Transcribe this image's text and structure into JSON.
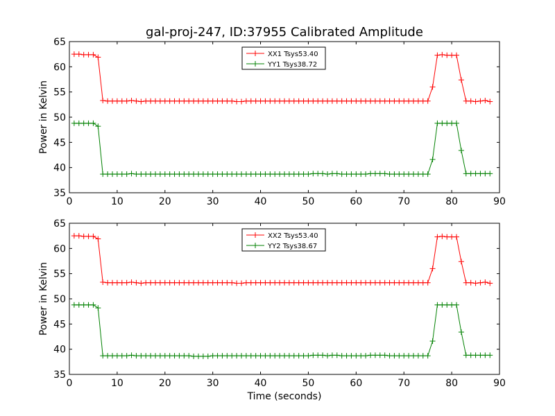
{
  "chart_data": [
    {
      "type": "line",
      "title": "gal-proj-247, ID:37955 Calibrated Amplitude",
      "xlabel": "",
      "ylabel": "Power in Kelvin",
      "xlim": [
        0,
        90
      ],
      "ylim": [
        35,
        65
      ],
      "xticks": [
        0,
        10,
        20,
        30,
        40,
        50,
        60,
        70,
        80,
        90
      ],
      "yticks": [
        35,
        40,
        45,
        50,
        55,
        60,
        65
      ],
      "legend_position": "top-center",
      "series": [
        {
          "name": "XX1 Tsys53.40",
          "color": "#ff0000",
          "marker": "plus",
          "x": [
            1,
            2,
            3,
            4,
            5,
            6,
            7,
            8,
            9,
            10,
            11,
            12,
            13,
            14,
            15,
            16,
            17,
            18,
            19,
            20,
            21,
            22,
            23,
            24,
            25,
            26,
            27,
            28,
            29,
            30,
            31,
            32,
            33,
            34,
            35,
            36,
            37,
            38,
            39,
            40,
            41,
            42,
            43,
            44,
            45,
            46,
            47,
            48,
            49,
            50,
            51,
            52,
            53,
            54,
            55,
            56,
            57,
            58,
            59,
            60,
            61,
            62,
            63,
            64,
            65,
            66,
            67,
            68,
            69,
            70,
            71,
            72,
            73,
            74,
            75,
            76,
            77,
            78,
            79,
            80,
            81,
            82,
            83,
            84,
            85,
            86,
            87,
            88
          ],
          "y": [
            62.5,
            62.5,
            62.4,
            62.4,
            62.4,
            61.9,
            53.3,
            53.2,
            53.2,
            53.2,
            53.2,
            53.2,
            53.3,
            53.2,
            53.1,
            53.2,
            53.2,
            53.2,
            53.2,
            53.2,
            53.2,
            53.2,
            53.2,
            53.2,
            53.2,
            53.2,
            53.2,
            53.2,
            53.2,
            53.2,
            53.2,
            53.2,
            53.2,
            53.2,
            53.1,
            53.1,
            53.2,
            53.2,
            53.2,
            53.2,
            53.2,
            53.2,
            53.2,
            53.2,
            53.2,
            53.2,
            53.2,
            53.2,
            53.2,
            53.2,
            53.2,
            53.2,
            53.2,
            53.2,
            53.2,
            53.2,
            53.2,
            53.2,
            53.2,
            53.2,
            53.2,
            53.2,
            53.2,
            53.2,
            53.2,
            53.2,
            53.2,
            53.2,
            53.2,
            53.2,
            53.2,
            53.2,
            53.2,
            53.2,
            53.2,
            56.0,
            62.3,
            62.4,
            62.3,
            62.3,
            62.3,
            57.4,
            53.2,
            53.2,
            53.1,
            53.2,
            53.3,
            53.1
          ]
        },
        {
          "name": "YY1 Tsys38.72",
          "color": "#008000",
          "marker": "plus",
          "x": [
            1,
            2,
            3,
            4,
            5,
            6,
            7,
            8,
            9,
            10,
            11,
            12,
            13,
            14,
            15,
            16,
            17,
            18,
            19,
            20,
            21,
            22,
            23,
            24,
            25,
            26,
            27,
            28,
            29,
            30,
            31,
            32,
            33,
            34,
            35,
            36,
            37,
            38,
            39,
            40,
            41,
            42,
            43,
            44,
            45,
            46,
            47,
            48,
            49,
            50,
            51,
            52,
            53,
            54,
            55,
            56,
            57,
            58,
            59,
            60,
            61,
            62,
            63,
            64,
            65,
            66,
            67,
            68,
            69,
            70,
            71,
            72,
            73,
            74,
            75,
            76,
            77,
            78,
            79,
            80,
            81,
            82,
            83,
            84,
            85,
            86,
            87,
            88
          ],
          "y": [
            48.8,
            48.8,
            48.8,
            48.8,
            48.8,
            48.2,
            38.7,
            38.7,
            38.7,
            38.7,
            38.7,
            38.7,
            38.8,
            38.7,
            38.7,
            38.7,
            38.7,
            38.7,
            38.7,
            38.7,
            38.7,
            38.7,
            38.7,
            38.7,
            38.7,
            38.7,
            38.7,
            38.7,
            38.7,
            38.7,
            38.7,
            38.7,
            38.7,
            38.7,
            38.7,
            38.7,
            38.7,
            38.7,
            38.7,
            38.7,
            38.7,
            38.7,
            38.7,
            38.7,
            38.7,
            38.7,
            38.7,
            38.7,
            38.7,
            38.7,
            38.8,
            38.8,
            38.8,
            38.7,
            38.8,
            38.8,
            38.7,
            38.7,
            38.7,
            38.7,
            38.7,
            38.7,
            38.8,
            38.8,
            38.8,
            38.8,
            38.7,
            38.7,
            38.7,
            38.7,
            38.7,
            38.7,
            38.7,
            38.7,
            38.7,
            41.6,
            48.8,
            48.8,
            48.8,
            48.8,
            48.8,
            43.4,
            38.8,
            38.8,
            38.8,
            38.8,
            38.8,
            38.8
          ]
        }
      ]
    },
    {
      "type": "line",
      "title": "",
      "xlabel": "Time (seconds)",
      "ylabel": "Power in Kelvin",
      "xlim": [
        0,
        90
      ],
      "ylim": [
        35,
        65
      ],
      "xticks": [
        0,
        10,
        20,
        30,
        40,
        50,
        60,
        70,
        80,
        90
      ],
      "yticks": [
        35,
        40,
        45,
        50,
        55,
        60,
        65
      ],
      "legend_position": "top-center",
      "series": [
        {
          "name": "XX2 Tsys53.40",
          "color": "#ff0000",
          "marker": "plus",
          "x": [
            1,
            2,
            3,
            4,
            5,
            6,
            7,
            8,
            9,
            10,
            11,
            12,
            13,
            14,
            15,
            16,
            17,
            18,
            19,
            20,
            21,
            22,
            23,
            24,
            25,
            26,
            27,
            28,
            29,
            30,
            31,
            32,
            33,
            34,
            35,
            36,
            37,
            38,
            39,
            40,
            41,
            42,
            43,
            44,
            45,
            46,
            47,
            48,
            49,
            50,
            51,
            52,
            53,
            54,
            55,
            56,
            57,
            58,
            59,
            60,
            61,
            62,
            63,
            64,
            65,
            66,
            67,
            68,
            69,
            70,
            71,
            72,
            73,
            74,
            75,
            76,
            77,
            78,
            79,
            80,
            81,
            82,
            83,
            84,
            85,
            86,
            87,
            88
          ],
          "y": [
            62.5,
            62.5,
            62.4,
            62.4,
            62.4,
            61.9,
            53.3,
            53.2,
            53.2,
            53.2,
            53.2,
            53.2,
            53.3,
            53.2,
            53.1,
            53.2,
            53.2,
            53.2,
            53.2,
            53.2,
            53.2,
            53.2,
            53.2,
            53.2,
            53.2,
            53.2,
            53.2,
            53.2,
            53.2,
            53.2,
            53.2,
            53.2,
            53.2,
            53.2,
            53.1,
            53.1,
            53.2,
            53.2,
            53.2,
            53.2,
            53.2,
            53.2,
            53.2,
            53.2,
            53.2,
            53.2,
            53.2,
            53.2,
            53.2,
            53.2,
            53.2,
            53.2,
            53.2,
            53.2,
            53.2,
            53.2,
            53.2,
            53.2,
            53.2,
            53.2,
            53.2,
            53.2,
            53.2,
            53.2,
            53.2,
            53.2,
            53.2,
            53.2,
            53.2,
            53.2,
            53.2,
            53.2,
            53.2,
            53.2,
            53.2,
            56.0,
            62.3,
            62.4,
            62.3,
            62.3,
            62.3,
            57.4,
            53.2,
            53.2,
            53.1,
            53.2,
            53.3,
            53.1
          ]
        },
        {
          "name": "YY2 Tsys38.67",
          "color": "#008000",
          "marker": "plus",
          "x": [
            1,
            2,
            3,
            4,
            5,
            6,
            7,
            8,
            9,
            10,
            11,
            12,
            13,
            14,
            15,
            16,
            17,
            18,
            19,
            20,
            21,
            22,
            23,
            24,
            25,
            26,
            27,
            28,
            29,
            30,
            31,
            32,
            33,
            34,
            35,
            36,
            37,
            38,
            39,
            40,
            41,
            42,
            43,
            44,
            45,
            46,
            47,
            48,
            49,
            50,
            51,
            52,
            53,
            54,
            55,
            56,
            57,
            58,
            59,
            60,
            61,
            62,
            63,
            64,
            65,
            66,
            67,
            68,
            69,
            70,
            71,
            72,
            73,
            74,
            75,
            76,
            77,
            78,
            79,
            80,
            81,
            82,
            83,
            84,
            85,
            86,
            87,
            88
          ],
          "y": [
            48.8,
            48.8,
            48.8,
            48.8,
            48.8,
            48.2,
            38.7,
            38.7,
            38.7,
            38.7,
            38.7,
            38.7,
            38.8,
            38.7,
            38.7,
            38.7,
            38.7,
            38.7,
            38.7,
            38.7,
            38.7,
            38.7,
            38.7,
            38.7,
            38.7,
            38.6,
            38.6,
            38.6,
            38.6,
            38.7,
            38.7,
            38.7,
            38.7,
            38.7,
            38.7,
            38.7,
            38.7,
            38.7,
            38.7,
            38.7,
            38.7,
            38.7,
            38.7,
            38.7,
            38.7,
            38.7,
            38.7,
            38.7,
            38.7,
            38.7,
            38.8,
            38.8,
            38.8,
            38.7,
            38.8,
            38.8,
            38.7,
            38.7,
            38.7,
            38.7,
            38.7,
            38.7,
            38.8,
            38.8,
            38.8,
            38.8,
            38.7,
            38.7,
            38.7,
            38.7,
            38.7,
            38.7,
            38.7,
            38.7,
            38.7,
            41.6,
            48.8,
            48.8,
            48.8,
            48.8,
            48.8,
            43.4,
            38.8,
            38.8,
            38.8,
            38.8,
            38.8,
            38.8
          ]
        }
      ]
    }
  ]
}
